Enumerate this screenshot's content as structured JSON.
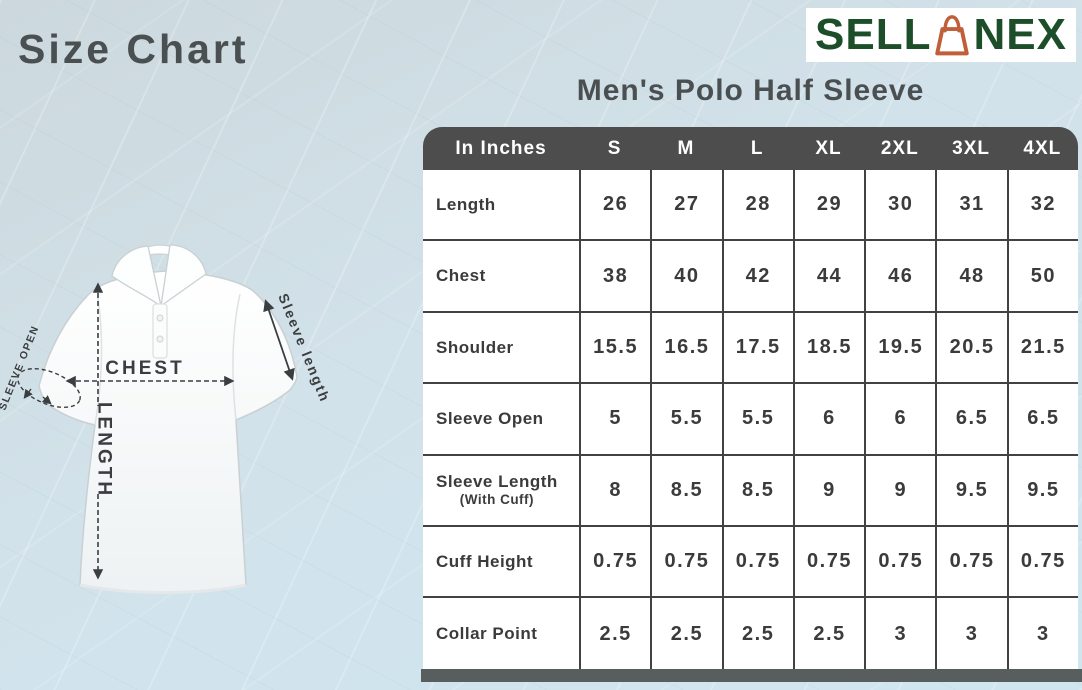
{
  "page": {
    "title": "Size Chart",
    "product_title": "Men's Polo Half Sleeve"
  },
  "logo": {
    "text_left": "SELL",
    "text_right": "NEX",
    "icon": "shopping-bag-icon",
    "text_color": "#1d4e2a",
    "icon_color": "#c0603a"
  },
  "diagram": {
    "chest_label": "CHEST",
    "length_label": "LENGTH",
    "sleeve_length_label": "Sleeve length",
    "sleeve_open_label": "SLEEVE OPEN"
  },
  "size_table": {
    "unit_header": "In Inches",
    "sizes": [
      "S",
      "M",
      "L",
      "XL",
      "2XL",
      "3XL",
      "4XL"
    ],
    "rows": [
      {
        "label": "Length",
        "sublabel": "",
        "values": [
          "26",
          "27",
          "28",
          "29",
          "30",
          "31",
          "32"
        ]
      },
      {
        "label": "Chest",
        "sublabel": "",
        "values": [
          "38",
          "40",
          "42",
          "44",
          "46",
          "48",
          "50"
        ]
      },
      {
        "label": "Shoulder",
        "sublabel": "",
        "values": [
          "15.5",
          "16.5",
          "17.5",
          "18.5",
          "19.5",
          "20.5",
          "21.5"
        ]
      },
      {
        "label": "Sleeve Open",
        "sublabel": "",
        "values": [
          "5",
          "5.5",
          "5.5",
          "6",
          "6",
          "6.5",
          "6.5"
        ]
      },
      {
        "label": "Sleeve Length",
        "sublabel": "(With Cuff)",
        "values": [
          "8",
          "8.5",
          "8.5",
          "9",
          "9",
          "9.5",
          "9.5"
        ]
      },
      {
        "label": "Cuff Height",
        "sublabel": "",
        "values": [
          "0.75",
          "0.75",
          "0.75",
          "0.75",
          "0.75",
          "0.75",
          "0.75"
        ]
      },
      {
        "label": "Collar Point",
        "sublabel": "",
        "values": [
          "2.5",
          "2.5",
          "2.5",
          "2.5",
          "3",
          "3",
          "3"
        ]
      }
    ],
    "colors": {
      "header_bg": "#4d4d4d",
      "header_text": "#ffffff",
      "grid_line": "#424242",
      "cell_text": "#3b3b3b",
      "base_bar": "#585d5d"
    }
  },
  "chart_data": {
    "type": "table",
    "title": "Men's Polo Half Sleeve",
    "unit": "In Inches",
    "columns": [
      "S",
      "M",
      "L",
      "XL",
      "2XL",
      "3XL",
      "4XL"
    ],
    "rows": [
      {
        "measurement": "Length",
        "values": [
          26,
          27,
          28,
          29,
          30,
          31,
          32
        ]
      },
      {
        "measurement": "Chest",
        "values": [
          38,
          40,
          42,
          44,
          46,
          48,
          50
        ]
      },
      {
        "measurement": "Shoulder",
        "values": [
          15.5,
          16.5,
          17.5,
          18.5,
          19.5,
          20.5,
          21.5
        ]
      },
      {
        "measurement": "Sleeve Open",
        "values": [
          5,
          5.5,
          5.5,
          6,
          6,
          6.5,
          6.5
        ]
      },
      {
        "measurement": "Sleeve Length (With Cuff)",
        "values": [
          8,
          8.5,
          8.5,
          9,
          9,
          9.5,
          9.5
        ]
      },
      {
        "measurement": "Cuff Height",
        "values": [
          0.75,
          0.75,
          0.75,
          0.75,
          0.75,
          0.75,
          0.75
        ]
      },
      {
        "measurement": "Collar Point",
        "values": [
          2.5,
          2.5,
          2.5,
          2.5,
          3,
          3,
          3
        ]
      }
    ]
  }
}
